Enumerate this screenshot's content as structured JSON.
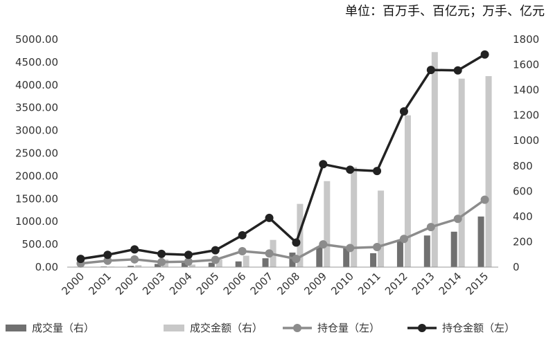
{
  "unit_label": "单位：百万手、百亿元；万手、亿元",
  "chart_data": {
    "type": "bar+line",
    "categories": [
      "2000",
      "2001",
      "2002",
      "2003",
      "2004",
      "2005",
      "2006",
      "2007",
      "2008",
      "2009",
      "2010",
      "2011",
      "2012",
      "2013",
      "2014",
      "2015"
    ],
    "series": [
      {
        "name": "成交量（右）",
        "type": "bar",
        "axis": "right",
        "color": "#707070",
        "values": [
          3,
          5,
          10,
          25,
          40,
          35,
          45,
          70,
          115,
          160,
          160,
          110,
          210,
          250,
          280,
          400
        ]
      },
      {
        "name": "成交金额（右）",
        "type": "bar",
        "axis": "right",
        "color": "#c8c8c8",
        "values": [
          2,
          4,
          15,
          60,
          20,
          60,
          90,
          215,
          500,
          680,
          790,
          605,
          1200,
          1700,
          1490,
          1510
        ]
      },
      {
        "name": "持仓量（左）",
        "type": "line",
        "axis": "left",
        "color": "#8c8c8c",
        "values": [
          80,
          140,
          170,
          110,
          120,
          160,
          350,
          300,
          180,
          500,
          420,
          440,
          620,
          880,
          1060,
          1480
        ]
      },
      {
        "name": "持仓金额（左）",
        "type": "line",
        "axis": "left",
        "color": "#222222",
        "values": [
          180,
          270,
          390,
          290,
          270,
          370,
          700,
          1080,
          540,
          2260,
          2140,
          2110,
          3420,
          4330,
          4320,
          4670
        ]
      }
    ],
    "y_left": {
      "min": 0,
      "max": 5000,
      "step": 500,
      "tick_labels": [
        "0.00",
        "500.00",
        "1000.00",
        "1500.00",
        "2000.00",
        "2500.00",
        "3000.00",
        "3500.00",
        "4000.00",
        "4500.00",
        "5000.00"
      ]
    },
    "y_right": {
      "min": 0,
      "max": 1800,
      "step": 200,
      "tick_labels": [
        "0",
        "200",
        "400",
        "600",
        "800",
        "1000",
        "1200",
        "1400",
        "1600",
        "1800"
      ]
    },
    "grid": false,
    "legend_position": "bottom"
  }
}
